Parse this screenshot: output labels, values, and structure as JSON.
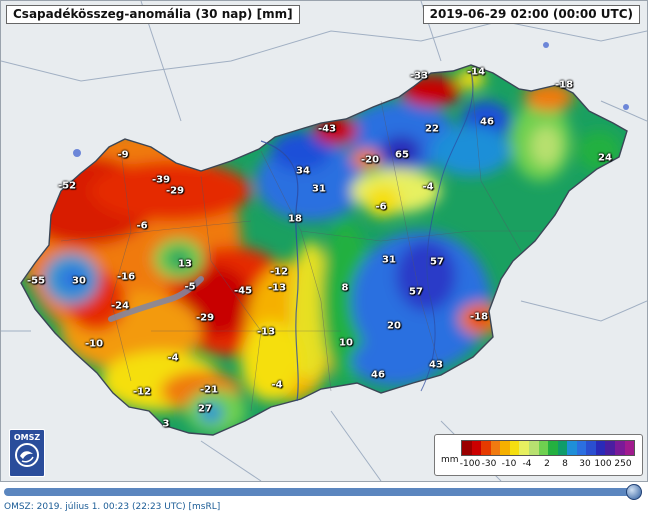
{
  "header": {
    "title": "Csapadékösszeg-anomália (30 nap) [mm]",
    "timestamp": "2019-06-29 02:00 (00:00 UTC)"
  },
  "map_labels": [
    {
      "text": "-33",
      "color": "#c80000"
    },
    {
      "text": "-14",
      "color": "#e9e30a"
    },
    {
      "text": "-18",
      "color": "#f07a10"
    },
    {
      "text": "-43",
      "color": "#c80000"
    },
    {
      "text": "22",
      "color": "#1f4fd8"
    },
    {
      "text": "46",
      "color": "#2a2ab8"
    },
    {
      "text": "-9",
      "color": "#f07a10"
    },
    {
      "text": "-20",
      "color": "#f07a10"
    },
    {
      "text": "65",
      "color": "#2a2ab8"
    },
    {
      "text": "24",
      "color": "#22a84a"
    },
    {
      "text": "-52",
      "color": "#c80000"
    },
    {
      "text": "-39",
      "color": "#c80000"
    },
    {
      "text": "-29",
      "color": "#c80000"
    },
    {
      "text": "34",
      "color": "#2b6fe0"
    },
    {
      "text": "31",
      "color": "#2b6fe0"
    },
    {
      "text": "-4",
      "color": "#e9e30a"
    },
    {
      "text": "-6",
      "color": "#e9e30a"
    },
    {
      "text": "-6",
      "color": "#f0a010"
    },
    {
      "text": "18",
      "color": "#22a84a"
    },
    {
      "text": "13",
      "color": "#22a84a"
    },
    {
      "text": "-12",
      "color": "#f07a10"
    },
    {
      "text": "31",
      "color": "#2b6fe0"
    },
    {
      "text": "57",
      "color": "#2a2ab8"
    },
    {
      "text": "-55",
      "color": "#c80000"
    },
    {
      "text": "30",
      "color": "#2b6fe0"
    },
    {
      "text": "-16",
      "color": "#f07a10"
    },
    {
      "text": "-5",
      "color": "#f07a10"
    },
    {
      "text": "-45",
      "color": "#c80000"
    },
    {
      "text": "-13",
      "color": "#f07a10"
    },
    {
      "text": "8",
      "color": "#22a84a"
    },
    {
      "text": "57",
      "color": "#2a2ab8"
    },
    {
      "text": "-24",
      "color": "#c80000"
    },
    {
      "text": "-29",
      "color": "#c80000"
    },
    {
      "text": "-13",
      "color": "#f07a10"
    },
    {
      "text": "20",
      "color": "#2b6fe0"
    },
    {
      "text": "-18",
      "color": "#f07a10"
    },
    {
      "text": "-10",
      "color": "#f07a10"
    },
    {
      "text": "10",
      "color": "#22a84a"
    },
    {
      "text": "-4",
      "color": "#e9e30a"
    },
    {
      "text": "46",
      "color": "#2b6fe0"
    },
    {
      "text": "43",
      "color": "#2b6fe0"
    },
    {
      "text": "-12",
      "color": "#f07a10"
    },
    {
      "text": "-21",
      "color": "#c80000"
    },
    {
      "text": "-4",
      "color": "#e9e30a"
    },
    {
      "text": "27",
      "color": "#2b6fe0"
    },
    {
      "text": "3",
      "color": "#22a84a"
    }
  ],
  "logo": {
    "text": "OMSZ"
  },
  "legend": {
    "unit": "mm",
    "colors": [
      "#9b0000",
      "#cc0000",
      "#e63a00",
      "#f07a10",
      "#f5b000",
      "#f5df10",
      "#e7f060",
      "#b8e070",
      "#6fd050",
      "#24b040",
      "#0f9c6a",
      "#1f8fd8",
      "#2b6fe0",
      "#2a4fd0",
      "#2a2ab8",
      "#4a1ea0",
      "#7a1a98",
      "#a11a8e"
    ],
    "ticks": [
      "-100",
      "-30",
      "-10",
      "-4",
      "2",
      "8",
      "30",
      "100",
      "250"
    ]
  },
  "footer": {
    "text": "OMSZ: 2019. július 1. 00:23 (22:23  UTC)  [msRL]"
  }
}
